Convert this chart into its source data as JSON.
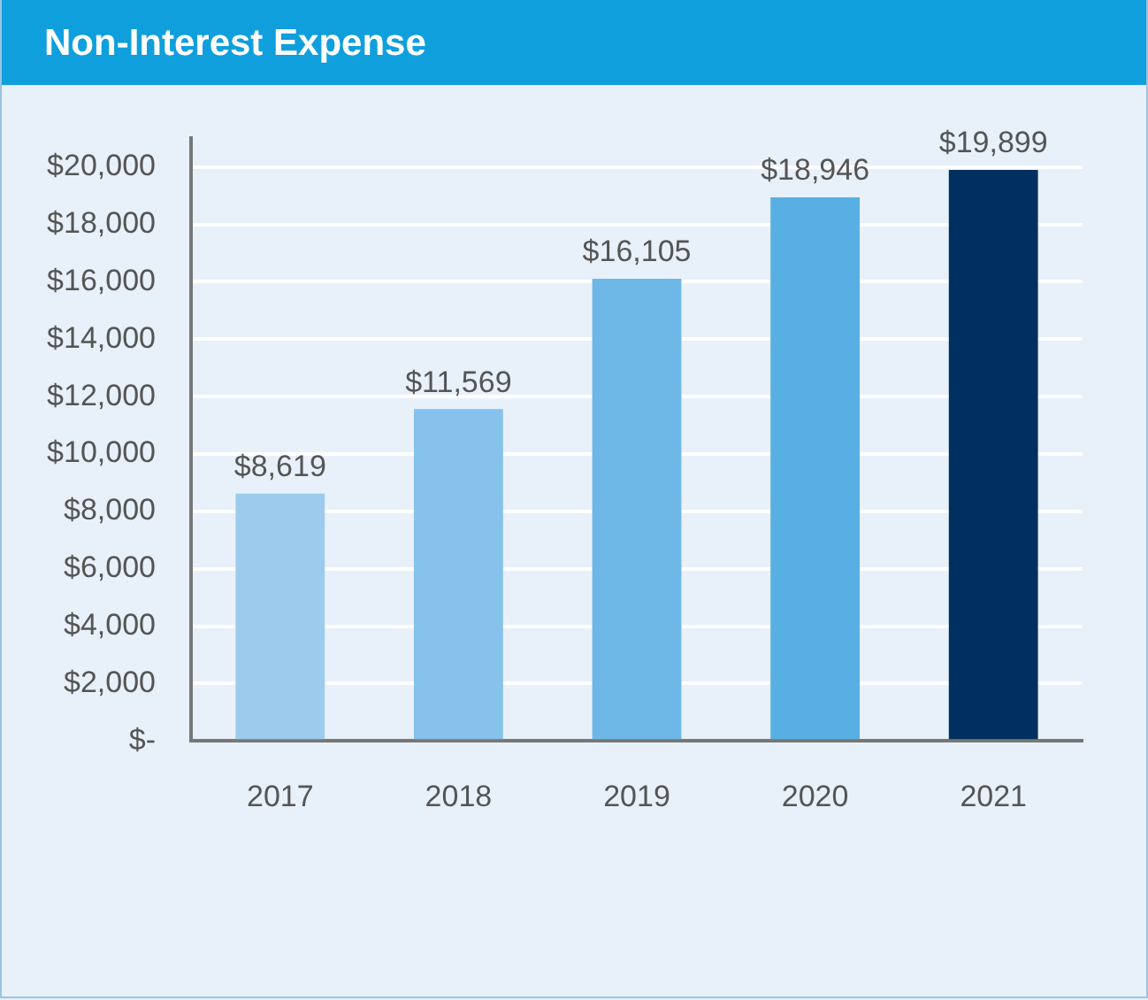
{
  "chart_data": {
    "type": "bar",
    "title": "Non-Interest Expense",
    "categories": [
      "2017",
      "2018",
      "2019",
      "2020",
      "2021"
    ],
    "values": [
      8619,
      11569,
      16105,
      18946,
      19899
    ],
    "colors": [
      "#9ccbee",
      "#86c2ec",
      "#6db8e6",
      "#58afe3",
      "#00305f"
    ],
    "value_labels": [
      "$8,619",
      "$11,569",
      "$16,105",
      "$18,946",
      "$19,899"
    ],
    "ylim": [
      0,
      21000
    ],
    "yticks": [
      {
        "value": 0,
        "label": "$-"
      },
      {
        "value": 2000,
        "label": "$2,000"
      },
      {
        "value": 4000,
        "label": "$4,000"
      },
      {
        "value": 6000,
        "label": "$6,000"
      },
      {
        "value": 8000,
        "label": "$8,000"
      },
      {
        "value": 10000,
        "label": "$10,000"
      },
      {
        "value": 12000,
        "label": "$12,000"
      },
      {
        "value": 14000,
        "label": "$14,000"
      },
      {
        "value": 16000,
        "label": "$16,000"
      },
      {
        "value": 18000,
        "label": "$18,000"
      },
      {
        "value": 20000,
        "label": "$20,000"
      }
    ],
    "grid": "y"
  }
}
